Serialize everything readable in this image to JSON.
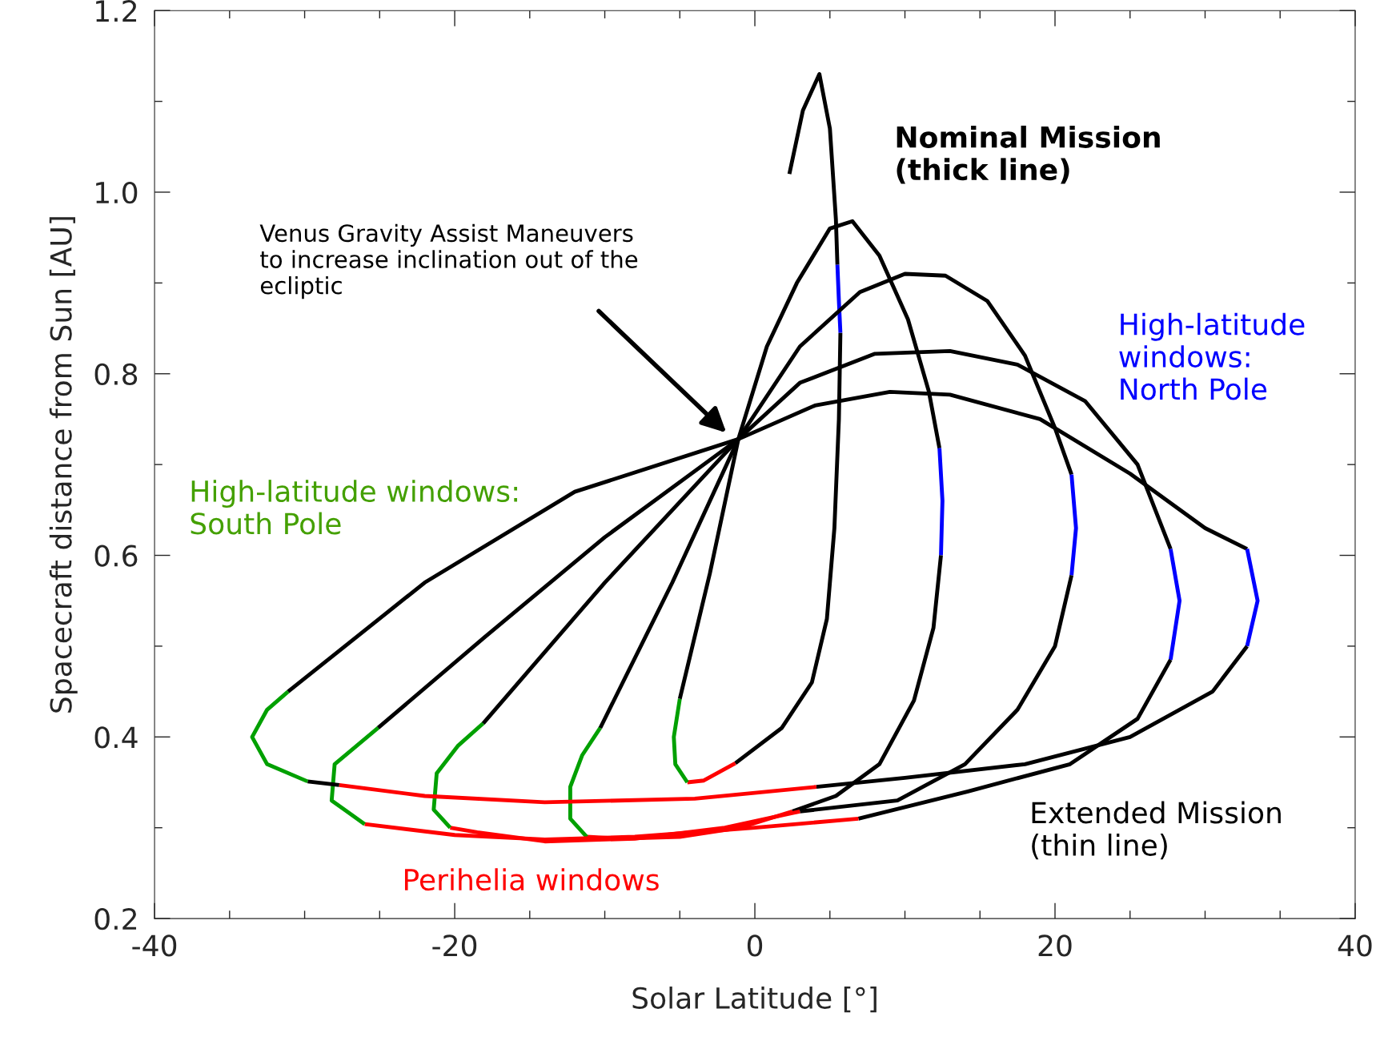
{
  "chart_data": {
    "type": "line",
    "xlabel": "Solar Latitude [°]",
    "ylabel": "Spacecraft distance from Sun [AU]",
    "xlim": [
      -40,
      40
    ],
    "ylim": [
      0.2,
      1.2
    ],
    "xticks": [
      -40,
      {
        "value": -35,
        "label": null
      },
      {
        "value": -30,
        "label": null
      },
      {
        "value": -25,
        "label": null
      },
      -20,
      {
        "value": -15,
        "label": null
      },
      {
        "value": -10,
        "label": null
      },
      {
        "value": -5,
        "label": null
      },
      0,
      {
        "value": 5,
        "label": null
      },
      {
        "value": 10,
        "label": null
      },
      {
        "value": 15,
        "label": null
      },
      20,
      {
        "value": 25,
        "label": null
      },
      {
        "value": 30,
        "label": null
      },
      {
        "value": 35,
        "label": null
      },
      40
    ],
    "yticks": [
      0.2,
      {
        "value": 0.3,
        "label": null
      },
      0.4,
      {
        "value": 0.5,
        "label": null
      },
      0.6,
      {
        "value": 0.7,
        "label": null
      },
      0.8,
      {
        "value": 0.9,
        "label": null
      },
      {
        "value": 1.0,
        "label": "1.0"
      },
      {
        "value": 1.1,
        "label": null
      },
      1.2
    ],
    "grid": false,
    "legend": false,
    "marker": "none",
    "line_style": "solid",
    "series": [
      {
        "color": "#000000",
        "x": [
          2.3,
          3.2,
          4.3,
          5.0,
          5.4,
          5.5
        ],
        "values": [
          1.02,
          1.09,
          1.13,
          1.07,
          0.97,
          0.92
        ]
      },
      {
        "color": "#0000ff",
        "x": [
          5.5,
          5.6,
          5.7
        ],
        "values": [
          0.92,
          0.88,
          0.845
        ]
      },
      {
        "color": "#000000",
        "x": [
          5.7,
          5.6,
          5.3,
          4.8,
          3.8,
          1.8,
          -1.3
        ],
        "values": [
          0.845,
          0.75,
          0.63,
          0.53,
          0.46,
          0.41,
          0.371
        ]
      },
      {
        "color": "#ff0000",
        "x": [
          -1.3,
          -3.4,
          -4.5
        ],
        "values": [
          0.371,
          0.352,
          0.35
        ]
      },
      {
        "color": "#00a000",
        "x": [
          -4.5,
          -5.3,
          -5.4,
          -5.0
        ],
        "values": [
          0.35,
          0.37,
          0.4,
          0.442
        ]
      },
      {
        "color": "#000000",
        "x": [
          -5.0,
          -3.0,
          -1.1,
          0.8,
          2.8,
          5.0,
          6.5,
          8.3,
          10.2,
          11.6,
          12.3
        ],
        "values": [
          0.442,
          0.58,
          0.728,
          0.83,
          0.9,
          0.96,
          0.968,
          0.93,
          0.86,
          0.78,
          0.718
        ]
      },
      {
        "color": "#0000ff",
        "x": [
          12.3,
          12.5,
          12.4
        ],
        "values": [
          0.718,
          0.66,
          0.6
        ]
      },
      {
        "color": "#000000",
        "x": [
          12.4,
          11.9,
          10.6,
          8.3,
          5.4,
          2.5
        ],
        "values": [
          0.6,
          0.52,
          0.44,
          0.37,
          0.335,
          0.318
        ]
      },
      {
        "color": "#ff0000",
        "x": [
          2.5,
          -1.0,
          -5.0,
          -9.0,
          -11.2
        ],
        "values": [
          0.318,
          0.3,
          0.29,
          0.288,
          0.29
        ]
      },
      {
        "color": "#00a000",
        "x": [
          -11.2,
          -12.3,
          -12.3,
          -11.5,
          -10.3
        ],
        "values": [
          0.29,
          0.31,
          0.345,
          0.38,
          0.41
        ]
      },
      {
        "color": "#000000",
        "x": [
          -10.3,
          -5.5,
          -1.1,
          3.0,
          7.0,
          10.0,
          12.7,
          15.5,
          18.0,
          20.0,
          21.1
        ],
        "values": [
          0.41,
          0.57,
          0.728,
          0.83,
          0.89,
          0.91,
          0.908,
          0.88,
          0.82,
          0.74,
          0.689
        ]
      },
      {
        "color": "#0000ff",
        "x": [
          21.1,
          21.4,
          21.1
        ],
        "values": [
          0.689,
          0.63,
          0.578
        ]
      },
      {
        "color": "#000000",
        "x": [
          21.1,
          20.0,
          17.5,
          14.0,
          9.5,
          3.0
        ],
        "values": [
          0.578,
          0.5,
          0.43,
          0.37,
          0.33,
          0.318
        ]
      },
      {
        "color": "#ff0000",
        "x": [
          3.0,
          -2.0,
          -8.0,
          -14.0,
          -18.5,
          -20.3
        ],
        "values": [
          0.318,
          0.3,
          0.288,
          0.285,
          0.295,
          0.3
        ]
      },
      {
        "color": "#00a000",
        "x": [
          -20.3,
          -21.4,
          -21.2,
          -19.8,
          -18.1
        ],
        "values": [
          0.3,
          0.32,
          0.36,
          0.39,
          0.415
        ]
      },
      {
        "color": "#000000",
        "x": [
          -18.1,
          -10.0,
          -1.1,
          3.0,
          8.0,
          13.0,
          17.5,
          22.0,
          25.5,
          27.7
        ],
        "values": [
          0.415,
          0.57,
          0.728,
          0.79,
          0.822,
          0.825,
          0.81,
          0.77,
          0.7,
          0.607
        ]
      },
      {
        "color": "#0000ff",
        "x": [
          27.7,
          28.3,
          27.7
        ],
        "values": [
          0.607,
          0.55,
          0.485
        ]
      },
      {
        "color": "#000000",
        "x": [
          27.7,
          25.5,
          21.0,
          14.2,
          6.9
        ],
        "values": [
          0.485,
          0.42,
          0.37,
          0.34,
          0.31
        ]
      },
      {
        "color": "#ff0000",
        "x": [
          6.9,
          0.0,
          -8.0,
          -14.0,
          -20.0,
          -26.0
        ],
        "values": [
          0.31,
          0.3,
          0.29,
          0.287,
          0.292,
          0.304
        ]
      },
      {
        "color": "#00a000",
        "x": [
          -26.0,
          -28.2,
          -28.0,
          -25.1
        ],
        "values": [
          0.304,
          0.33,
          0.37,
          0.41
        ]
      },
      {
        "color": "#000000",
        "x": [
          -25.1,
          -18.0,
          -10.0,
          -1.1,
          4.0,
          9.0,
          13.0,
          19.0,
          25.0,
          30.0,
          32.8
        ],
        "values": [
          0.41,
          0.51,
          0.62,
          0.728,
          0.765,
          0.78,
          0.777,
          0.75,
          0.69,
          0.63,
          0.607
        ]
      },
      {
        "color": "#0000ff",
        "x": [
          32.8,
          33.5,
          32.8
        ],
        "values": [
          0.607,
          0.55,
          0.5
        ]
      },
      {
        "color": "#000000",
        "x": [
          32.8,
          30.5,
          25.0,
          18.0,
          10.0,
          4.1
        ],
        "values": [
          0.5,
          0.45,
          0.4,
          0.37,
          0.355,
          0.345
        ]
      },
      {
        "color": "#ff0000",
        "x": [
          4.1,
          -4.0,
          -14.0,
          -22.0,
          -27.7
        ],
        "values": [
          0.345,
          0.332,
          0.328,
          0.335,
          0.347
        ]
      },
      {
        "color": "#000000",
        "x": [
          -27.7,
          -29.8
        ],
        "values": [
          0.347,
          0.351
        ]
      },
      {
        "color": "#00a000",
        "x": [
          -29.8,
          -32.5,
          -33.5,
          -32.5,
          -31.1
        ],
        "values": [
          0.351,
          0.37,
          0.4,
          0.43,
          0.45
        ]
      },
      {
        "color": "#000000",
        "x": [
          -31.1,
          -22.0,
          -12.0,
          -1.1
        ],
        "values": [
          0.45,
          0.57,
          0.67,
          0.728
        ]
      }
    ],
    "annotations": [
      "Venus Gravity Assist Maneuvers\nto increase inclination out of the\necliptic",
      "Nominal Mission\n(thick line)",
      "High-latitude\nwindows:\nNorth Pole",
      "High-latitude windows:\nSouth Pole",
      "Perihelia windows",
      "Extended Mission\n(thin line)"
    ]
  }
}
